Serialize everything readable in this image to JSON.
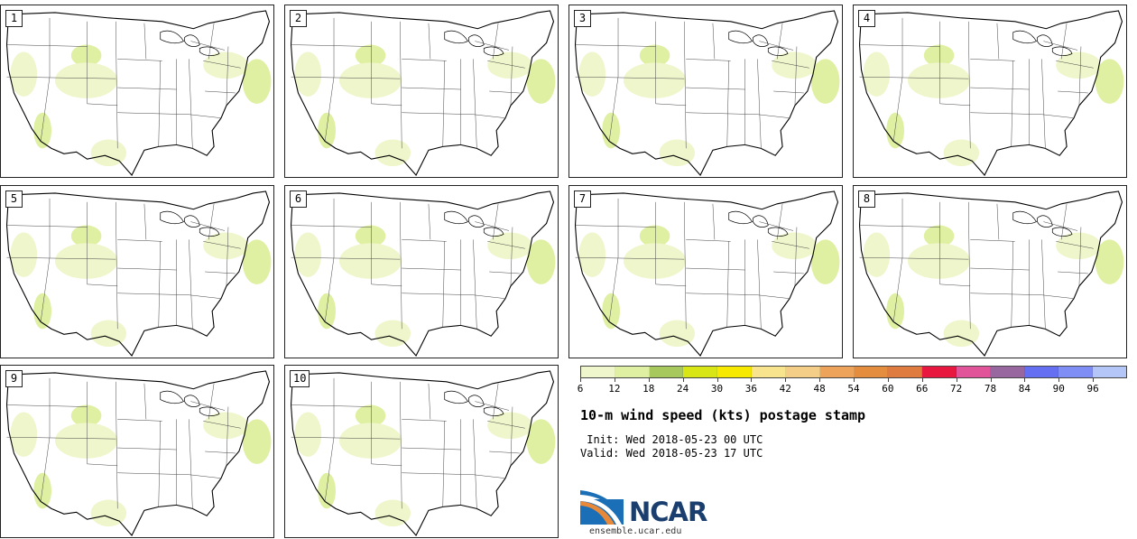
{
  "panels": [
    {
      "label": "1"
    },
    {
      "label": "2"
    },
    {
      "label": "3"
    },
    {
      "label": "4"
    },
    {
      "label": "5"
    },
    {
      "label": "6"
    },
    {
      "label": "7"
    },
    {
      "label": "8"
    },
    {
      "label": "9"
    },
    {
      "label": "10"
    }
  ],
  "colorbar": {
    "colors": [
      "#f0f6cc",
      "#dff0a2",
      "#a6c85d",
      "#d8e616",
      "#f7e900",
      "#f8e48c",
      "#f4cd86",
      "#eea35a",
      "#e58d3e",
      "#df7b3e",
      "#e8173f",
      "#e2549a",
      "#98679f",
      "#646ff1",
      "#7f8ef4",
      "#b3c6f7"
    ],
    "ticks": [
      "6",
      "12",
      "18",
      "24",
      "30",
      "36",
      "42",
      "48",
      "54",
      "60",
      "66",
      "72",
      "78",
      "84",
      "90",
      "96"
    ]
  },
  "product": {
    "title": "10-m wind speed (kts) postage stamp",
    "init": " Init: Wed 2018-05-23 00 UTC",
    "valid": "Valid: Wed 2018-05-23 17 UTC"
  },
  "logo": {
    "wordmark": "NCAR",
    "url": "ensemble.ucar.edu",
    "brand_color": "#1a3e6e"
  },
  "map_colors": {
    "light_wind": "#f0f6cc",
    "moderate_wind": "#dff0a2",
    "coastline": "#000000",
    "state_lines": "#444444"
  }
}
